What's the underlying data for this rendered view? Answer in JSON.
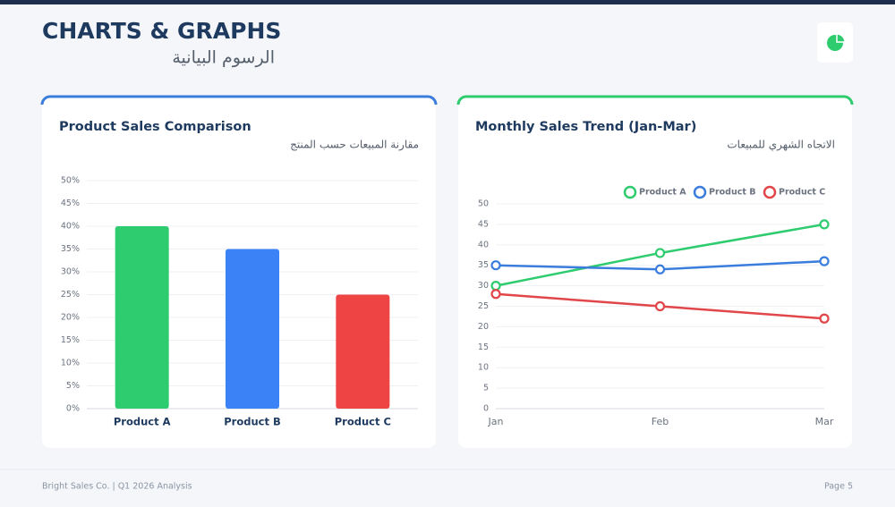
{
  "header": {
    "title": "CHARTS & GRAPHS",
    "subtitle": "الرسوم البيانية"
  },
  "footer": {
    "left": "Bright Sales Co. | Q1 2026 Analysis",
    "right": "Page 5"
  },
  "chart_data": [
    {
      "type": "bar",
      "title": "Product Sales Comparison",
      "subtitle": "مقارنة المبيعات حسب المنتج",
      "accent": "#3b7ddd",
      "categories": [
        "Product A",
        "Product B",
        "Product C"
      ],
      "values": [
        40,
        35,
        25
      ],
      "colors": [
        "#2ecc6f",
        "#3b82f6",
        "#ef4444"
      ],
      "ylim": [
        0,
        50
      ],
      "yticks": [
        {
          "value": 0,
          "label": "0%"
        },
        {
          "value": 5,
          "label": "5%"
        },
        {
          "value": 10,
          "label": "10%"
        },
        {
          "value": 15,
          "label": "15%"
        },
        {
          "value": 20,
          "label": "20%"
        },
        {
          "value": 25,
          "label": "25%"
        },
        {
          "value": 30,
          "label": "30%"
        },
        {
          "value": 35,
          "label": "35%"
        },
        {
          "value": 40,
          "label": "40%"
        },
        {
          "value": 45,
          "label": "45%"
        },
        {
          "value": 50,
          "label": "50%"
        }
      ],
      "grid": true
    },
    {
      "type": "line",
      "title": "Monthly Sales Trend (Jan-Mar)",
      "subtitle": "الاتجاه الشهري للمبيعات",
      "accent": "#2ecc6f",
      "categories": [
        "Jan",
        "Feb",
        "Mar"
      ],
      "series": [
        {
          "name": "Product A",
          "color": "#2ecc6f",
          "values": [
            30,
            38,
            45
          ]
        },
        {
          "name": "Product B",
          "color": "#3b7ddd",
          "values": [
            35,
            34,
            36
          ]
        },
        {
          "name": "Product C",
          "color": "#e0464a",
          "values": [
            28,
            25,
            22
          ]
        }
      ],
      "ylim": [
        0,
        50
      ],
      "yticks": [
        0,
        5,
        10,
        15,
        20,
        25,
        30,
        35,
        40,
        45,
        50
      ],
      "grid": true,
      "legend": "top-right"
    }
  ]
}
